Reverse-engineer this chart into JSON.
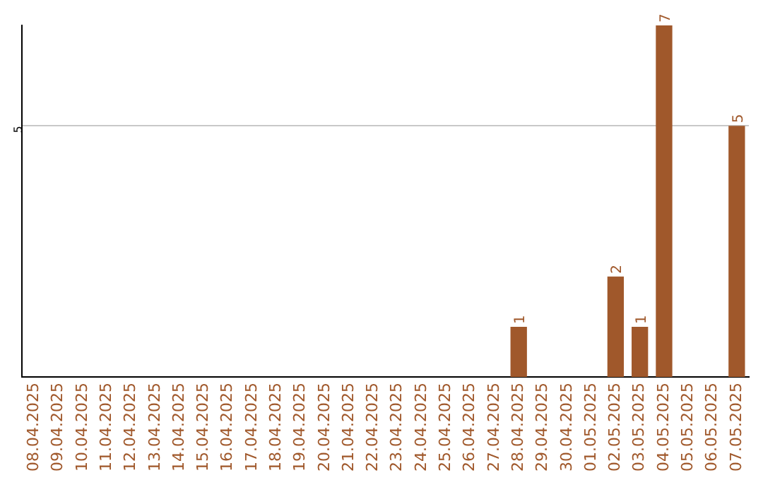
{
  "chart_data": {
    "type": "bar",
    "categories": [
      "08.04.2025",
      "09.04.2025",
      "10.04.2025",
      "11.04.2025",
      "12.04.2025",
      "13.04.2025",
      "14.04.2025",
      "15.04.2025",
      "16.04.2025",
      "17.04.2025",
      "18.04.2025",
      "19.04.2025",
      "20.04.2025",
      "21.04.2025",
      "22.04.2025",
      "23.04.2025",
      "24.04.2025",
      "25.04.2025",
      "26.04.2025",
      "27.04.2025",
      "28.04.2025",
      "29.04.2025",
      "30.04.2025",
      "01.05.2025",
      "02.05.2025",
      "03.05.2025",
      "04.05.2025",
      "05.05.2025",
      "06.05.2025",
      "07.05.2025"
    ],
    "values": [
      null,
      null,
      null,
      null,
      null,
      null,
      null,
      null,
      null,
      null,
      null,
      null,
      null,
      null,
      null,
      null,
      null,
      null,
      null,
      null,
      1,
      null,
      null,
      null,
      2,
      1,
      7,
      null,
      null,
      5
    ],
    "data_labels": true,
    "color": "#a0582b",
    "ylim": [
      0,
      7
    ],
    "yticks": [
      5
    ],
    "grid": "y",
    "legend": false
  }
}
